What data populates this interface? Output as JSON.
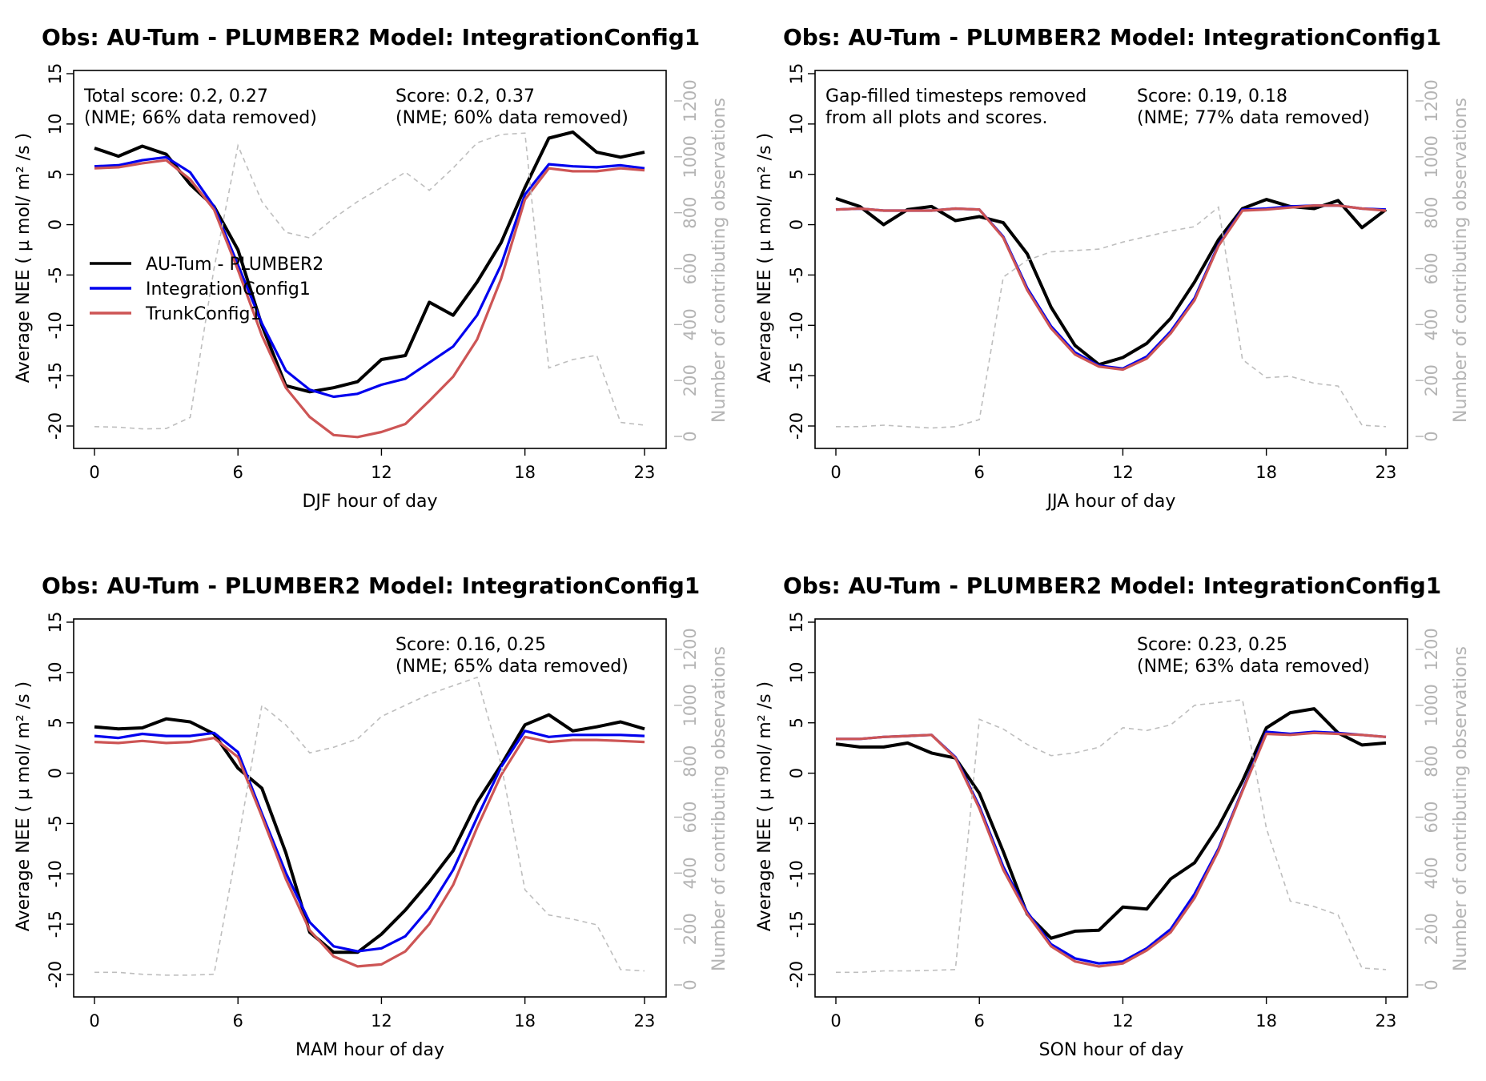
{
  "legend": {
    "entries": [
      {
        "label": "AU-Tum - PLUMBER2",
        "color": "#000000"
      },
      {
        "label": "IntegrationConfig1",
        "color": "#0000ee"
      },
      {
        "label": "TrunkConfig1",
        "color": "#cd5555"
      }
    ]
  },
  "colors": {
    "obs": "#000000",
    "integration": "#0000ee",
    "trunk": "#cd5555",
    "count": "#bebebe",
    "right_axis": "#b4b4b4"
  },
  "chart_data": [
    {
      "type": "line",
      "title": "Obs: AU-Tum - PLUMBER2   Model: IntegrationConfig1",
      "xlabel": "DJF hour of day",
      "ylabel": "Average NEE  (  µ mol/ m² /s )",
      "y2label": "Number of contributing observations",
      "xlim": [
        0,
        23
      ],
      "ylim": [
        -22,
        15
      ],
      "y2lim": [
        0,
        1200
      ],
      "xticks": [
        "0",
        "6",
        "12",
        "18",
        "23"
      ],
      "yticks": [
        "-20",
        "-15",
        "-10",
        "-5",
        "0",
        "5",
        "10",
        "15"
      ],
      "y2ticks": [
        "0",
        "200",
        "400",
        "600",
        "800",
        "1000",
        "1200"
      ],
      "annotations": [
        "Total score: 0.2, 0.27",
        "(NME; 66% data removed)",
        "Score: 0.2, 0.37",
        "(NME; 60% data removed)"
      ],
      "show_legend": true,
      "series": [
        {
          "name": "AU-Tum - PLUMBER2",
          "values": [
            7.6,
            6.8,
            7.8,
            7.0,
            4.0,
            1.8,
            -2.5,
            -10.0,
            -16.0,
            -16.6,
            -16.2,
            -15.6,
            -13.4,
            -13.0,
            -7.7,
            -9.0,
            -5.7,
            -1.8,
            3.7,
            8.6,
            9.2,
            7.2,
            6.7,
            7.2
          ]
        },
        {
          "name": "IntegrationConfig1",
          "values": [
            5.8,
            5.9,
            6.4,
            6.7,
            5.2,
            1.8,
            -4.0,
            -9.8,
            -14.5,
            -16.4,
            -17.1,
            -16.8,
            -15.9,
            -15.3,
            -13.7,
            -12.1,
            -9.0,
            -4.0,
            3.0,
            6.0,
            5.8,
            5.7,
            5.9,
            5.6
          ]
        },
        {
          "name": "TrunkConfig1",
          "values": [
            5.6,
            5.7,
            6.1,
            6.4,
            4.5,
            1.5,
            -4.5,
            -11.0,
            -16.2,
            -19.1,
            -20.9,
            -21.1,
            -20.6,
            -19.8,
            -17.5,
            -15.1,
            -11.4,
            -5.4,
            2.5,
            5.6,
            5.3,
            5.3,
            5.6,
            5.4
          ]
        },
        {
          "name": "Number of contributing observations",
          "axis": "right",
          "values": [
            35,
            33,
            27,
            28,
            68,
            600,
            1040,
            840,
            730,
            710,
            780,
            840,
            890,
            945,
            880,
            960,
            1050,
            1080,
            1085,
            245,
            275,
            290,
            50,
            40
          ]
        }
      ]
    },
    {
      "type": "line",
      "title": "Obs: AU-Tum - PLUMBER2   Model: IntegrationConfig1",
      "xlabel": "JJA hour of day",
      "ylabel": "Average NEE  (  µ mol/ m² /s )",
      "y2label": "Number of contributing observations",
      "xlim": [
        0,
        23
      ],
      "ylim": [
        -22,
        15
      ],
      "y2lim": [
        0,
        1200
      ],
      "xticks": [
        "0",
        "6",
        "12",
        "18",
        "23"
      ],
      "yticks": [
        "-20",
        "-15",
        "-10",
        "-5",
        "0",
        "5",
        "10",
        "15"
      ],
      "y2ticks": [
        "0",
        "200",
        "400",
        "600",
        "800",
        "1000",
        "1200"
      ],
      "annotations": [
        "Gap-filled timesteps removed",
        "from all plots and scores.",
        "Score: 0.19, 0.18",
        "(NME; 77% data removed)"
      ],
      "show_legend": false,
      "series": [
        {
          "name": "AU-Tum - PLUMBER2",
          "values": [
            2.6,
            1.8,
            0.0,
            1.5,
            1.8,
            0.4,
            0.8,
            0.2,
            -2.9,
            -8.2,
            -12.0,
            -13.9,
            -13.2,
            -11.8,
            -9.3,
            -5.7,
            -1.5,
            1.6,
            2.5,
            1.8,
            1.6,
            2.4,
            -0.3,
            1.5
          ]
        },
        {
          "name": "IntegrationConfig1",
          "values": [
            1.5,
            1.6,
            1.4,
            1.4,
            1.4,
            1.6,
            1.5,
            -1.2,
            -6.3,
            -10.1,
            -12.7,
            -14.0,
            -14.3,
            -13.1,
            -10.6,
            -7.3,
            -2.0,
            1.5,
            1.6,
            1.8,
            1.9,
            1.9,
            1.6,
            1.5
          ]
        },
        {
          "name": "TrunkConfig1",
          "values": [
            1.5,
            1.6,
            1.4,
            1.4,
            1.4,
            1.6,
            1.5,
            -1.3,
            -6.5,
            -10.3,
            -12.9,
            -14.1,
            -14.4,
            -13.3,
            -10.8,
            -7.5,
            -2.1,
            1.4,
            1.5,
            1.7,
            1.9,
            1.9,
            1.6,
            1.4
          ]
        },
        {
          "name": "Number of contributing observations",
          "axis": "right",
          "values": [
            35,
            35,
            40,
            35,
            30,
            35,
            60,
            570,
            630,
            660,
            665,
            670,
            695,
            715,
            735,
            750,
            820,
            275,
            210,
            215,
            190,
            180,
            40,
            35
          ]
        }
      ]
    },
    {
      "type": "line",
      "title": "Obs: AU-Tum - PLUMBER2   Model: IntegrationConfig1",
      "xlabel": "MAM hour of day",
      "ylabel": "Average NEE  (  µ mol/ m² /s )",
      "y2label": "Number of contributing observations",
      "xlim": [
        0,
        23
      ],
      "ylim": [
        -22,
        15
      ],
      "y2lim": [
        0,
        1200
      ],
      "xticks": [
        "0",
        "6",
        "12",
        "18",
        "23"
      ],
      "yticks": [
        "-20",
        "-15",
        "-10",
        "-5",
        "0",
        "5",
        "10",
        "15"
      ],
      "y2ticks": [
        "0",
        "200",
        "400",
        "600",
        "800",
        "1000",
        "1200"
      ],
      "annotations": [
        "Score: 0.16, 0.25",
        "(NME; 65% data removed)"
      ],
      "show_legend": false,
      "series": [
        {
          "name": "AU-Tum - PLUMBER2",
          "values": [
            4.6,
            4.4,
            4.5,
            5.4,
            5.1,
            3.9,
            0.5,
            -1.5,
            -7.9,
            -15.8,
            -17.8,
            -17.8,
            -16.0,
            -13.6,
            -10.8,
            -7.7,
            -2.9,
            0.8,
            4.8,
            5.8,
            4.2,
            4.6,
            5.1,
            4.4
          ]
        },
        {
          "name": "IntegrationConfig1",
          "values": [
            3.7,
            3.5,
            3.9,
            3.7,
            3.7,
            4.0,
            2.1,
            -4.0,
            -9.9,
            -14.8,
            -17.2,
            -17.7,
            -17.4,
            -16.2,
            -13.4,
            -9.6,
            -4.4,
            0.6,
            4.2,
            3.6,
            3.8,
            3.8,
            3.8,
            3.7
          ]
        },
        {
          "name": "TrunkConfig1",
          "values": [
            3.1,
            3.0,
            3.2,
            3.0,
            3.1,
            3.5,
            1.6,
            -4.3,
            -10.5,
            -15.6,
            -18.2,
            -19.2,
            -19.0,
            -17.7,
            -15.0,
            -11.1,
            -5.4,
            -0.2,
            3.6,
            3.1,
            3.3,
            3.3,
            3.2,
            3.1
          ]
        },
        {
          "name": "Number of contributing observations",
          "axis": "right",
          "values": [
            45,
            45,
            38,
            35,
            35,
            38,
            510,
            1000,
            930,
            830,
            850,
            880,
            960,
            1000,
            1040,
            1070,
            1100,
            790,
            340,
            250,
            235,
            215,
            55,
            50
          ]
        }
      ]
    },
    {
      "type": "line",
      "title": "Obs: AU-Tum - PLUMBER2   Model: IntegrationConfig1",
      "xlabel": "SON hour of day",
      "ylabel": "Average NEE  (  µ mol/ m² /s )",
      "y2label": "Number of contributing observations",
      "xlim": [
        0,
        23
      ],
      "ylim": [
        -22,
        15
      ],
      "y2lim": [
        0,
        1200
      ],
      "xticks": [
        "0",
        "6",
        "12",
        "18",
        "23"
      ],
      "yticks": [
        "-20",
        "-15",
        "-10",
        "-5",
        "0",
        "5",
        "10",
        "15"
      ],
      "y2ticks": [
        "0",
        "200",
        "400",
        "600",
        "800",
        "1000",
        "1200"
      ],
      "annotations": [
        "Score: 0.23, 0.25",
        "(NME; 63% data removed)"
      ],
      "show_legend": false,
      "series": [
        {
          "name": "AU-Tum - PLUMBER2",
          "values": [
            2.9,
            2.6,
            2.6,
            3.0,
            2.0,
            1.5,
            -2.0,
            -7.8,
            -14.0,
            -16.4,
            -15.7,
            -15.6,
            -13.3,
            -13.5,
            -10.5,
            -8.9,
            -5.3,
            -0.8,
            4.5,
            6.0,
            6.4,
            4.0,
            2.8,
            3.0
          ]
        },
        {
          "name": "IntegrationConfig1",
          "values": [
            3.4,
            3.4,
            3.6,
            3.7,
            3.8,
            1.6,
            -3.3,
            -9.3,
            -13.8,
            -17.0,
            -18.4,
            -18.9,
            -18.7,
            -17.4,
            -15.5,
            -12.0,
            -7.5,
            -1.7,
            4.1,
            3.9,
            4.1,
            4.0,
            3.8,
            3.6
          ]
        },
        {
          "name": "TrunkConfig1",
          "values": [
            3.4,
            3.4,
            3.6,
            3.7,
            3.8,
            1.5,
            -3.5,
            -9.6,
            -14.0,
            -17.2,
            -18.7,
            -19.2,
            -18.9,
            -17.6,
            -15.8,
            -12.4,
            -7.7,
            -1.8,
            3.9,
            3.8,
            4.0,
            3.9,
            3.8,
            3.6
          ]
        },
        {
          "name": "Number of contributing observations",
          "axis": "right",
          "values": [
            45,
            45,
            50,
            50,
            52,
            55,
            950,
            915,
            860,
            820,
            830,
            850,
            920,
            910,
            930,
            1000,
            1010,
            1020,
            560,
            300,
            280,
            250,
            60,
            55
          ]
        }
      ]
    }
  ]
}
